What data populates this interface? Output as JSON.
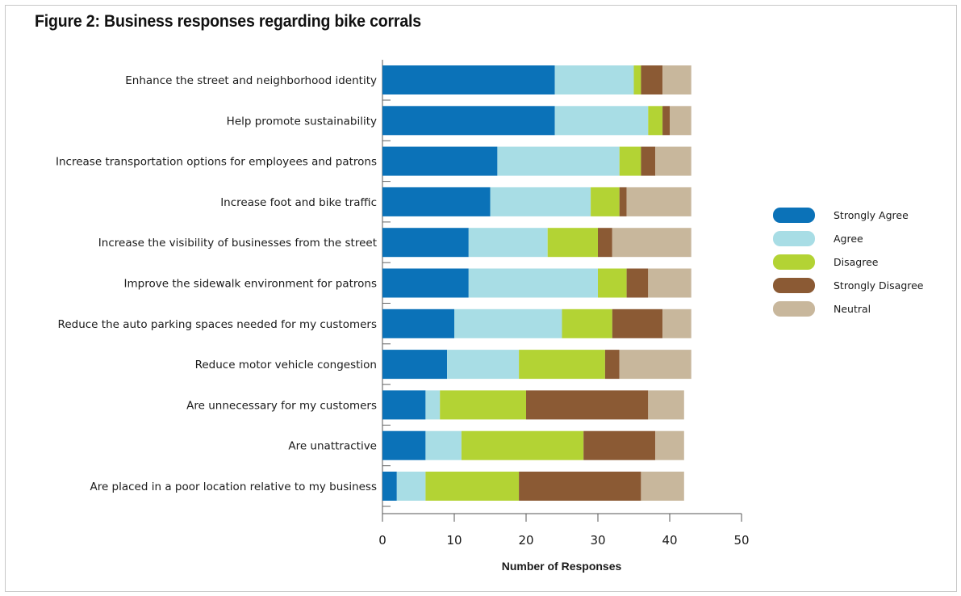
{
  "figure_title": "Figure 2: Business responses regarding bike corrals",
  "chart_data": {
    "type": "bar",
    "orientation": "horizontal",
    "stacked": true,
    "title": "Figure 2: Business responses regarding bike corrals",
    "xlabel": "Number of Responses",
    "ylabel": "",
    "xlim": [
      0,
      50
    ],
    "xticks": [
      0,
      10,
      20,
      30,
      40,
      50
    ],
    "grid": false,
    "legend_position": "right",
    "categories": [
      "Enhance the street and neighborhood identity",
      "Help promote sustainability",
      "Increase transportation options for employees and patrons",
      "Increase foot and bike traffic",
      "Increase the visibility of businesses from the street",
      "Improve the sidewalk environment for patrons",
      "Reduce the auto parking spaces needed for my customers",
      "Reduce motor vehicle congestion",
      "Are unnecessary for my customers",
      "Are unattractive",
      "Are placed in a poor location relative to my business"
    ],
    "series": [
      {
        "name": "Strongly Agree",
        "color": "#0b72b8",
        "values": [
          24,
          24,
          16,
          15,
          12,
          12,
          10,
          9,
          6,
          6,
          2
        ]
      },
      {
        "name": "Agree",
        "color": "#a8dde5",
        "values": [
          11,
          13,
          17,
          14,
          11,
          18,
          15,
          10,
          2,
          5,
          4
        ]
      },
      {
        "name": "Disagree",
        "color": "#b3d334",
        "values": [
          1,
          2,
          3,
          4,
          7,
          4,
          7,
          12,
          12,
          17,
          13
        ]
      },
      {
        "name": "Strongly Disagree",
        "color": "#8b5a34",
        "values": [
          3,
          1,
          2,
          1,
          2,
          3,
          7,
          2,
          17,
          10,
          17
        ]
      },
      {
        "name": "Neutral",
        "color": "#c8b79c",
        "values": [
          4,
          3,
          5,
          9,
          11,
          6,
          4,
          10,
          5,
          4,
          6
        ]
      }
    ]
  }
}
